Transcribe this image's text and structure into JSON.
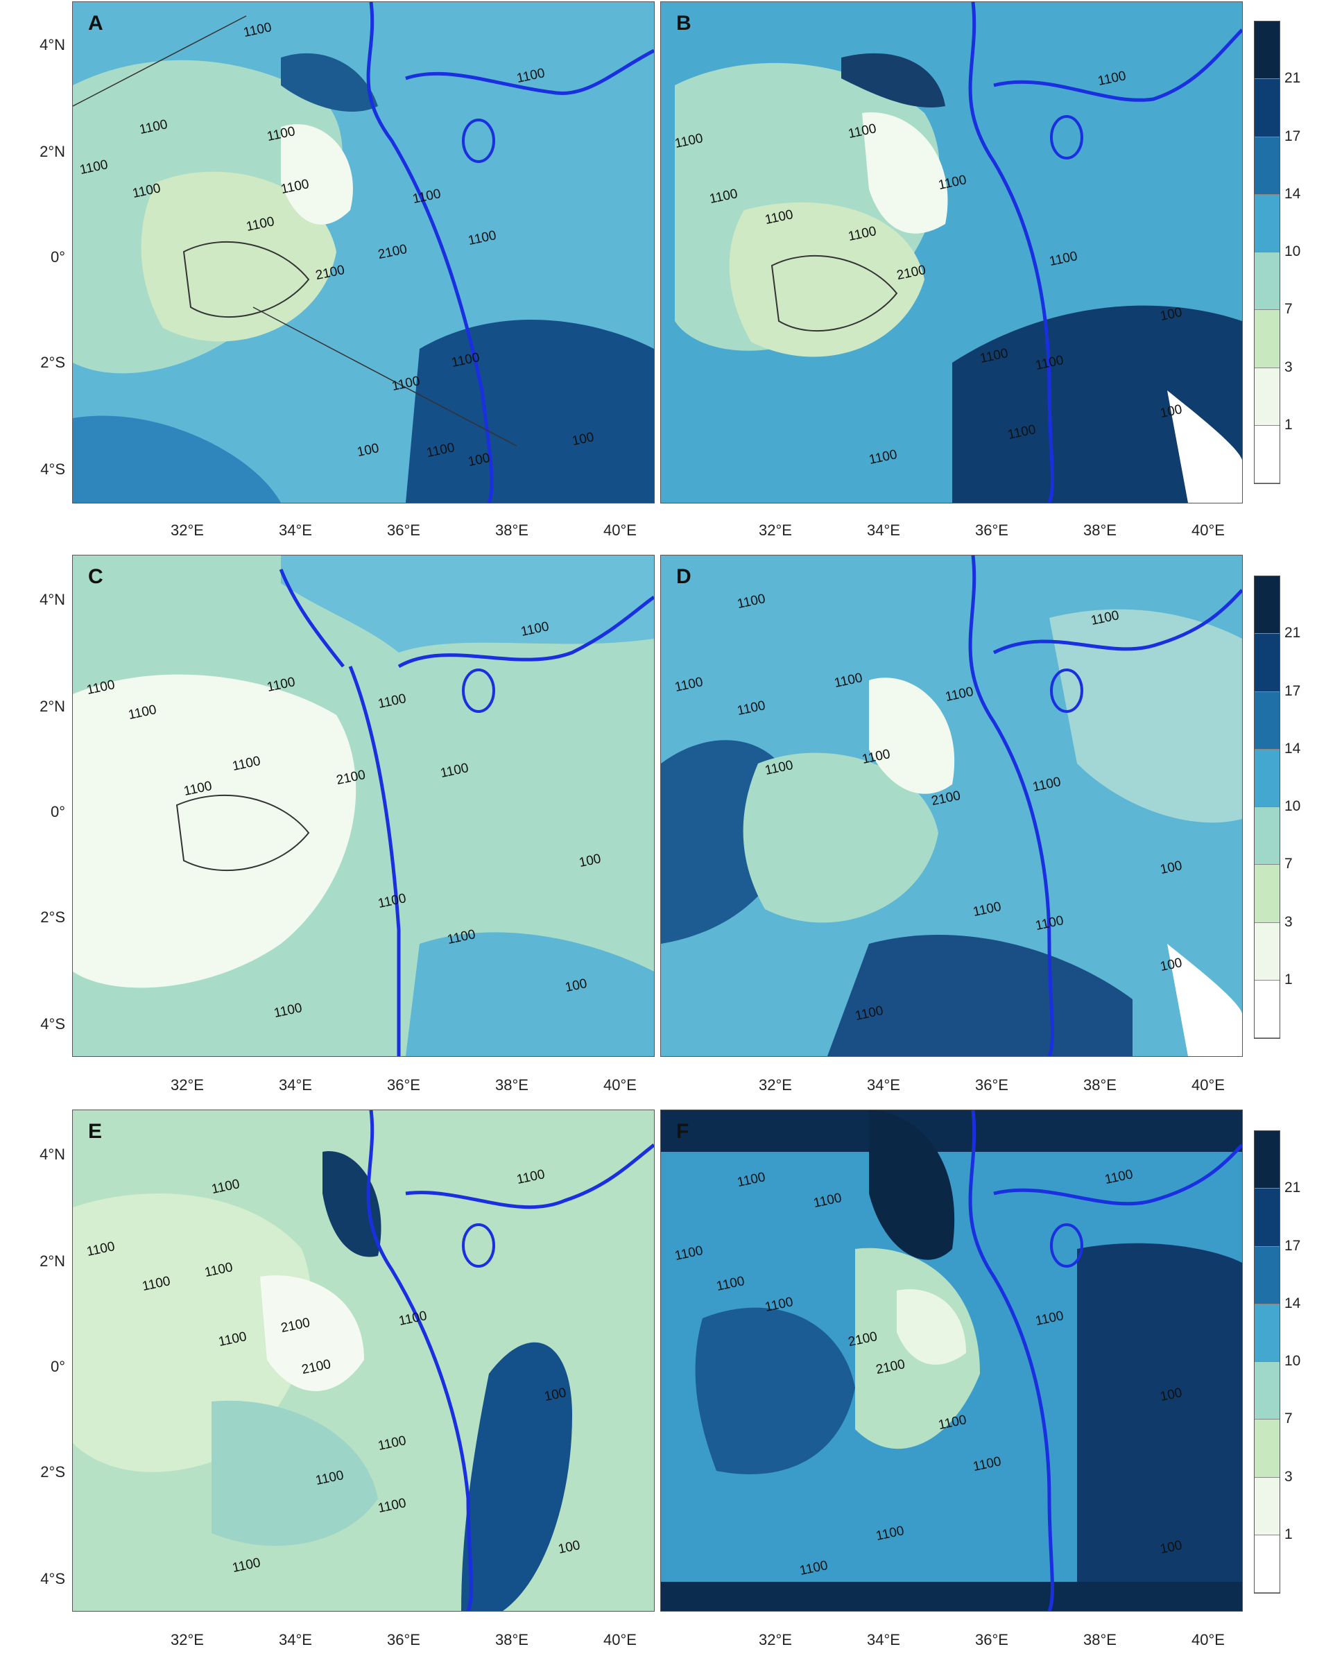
{
  "panels": [
    {
      "letter": "A",
      "contours": [
        "1100",
        "1100",
        "1100",
        "1100",
        "1100",
        "1100",
        "1100",
        "1100",
        "1100",
        "2100",
        "2100",
        "1100",
        "1100",
        "1100",
        "100",
        "1100",
        "100",
        "100"
      ]
    },
    {
      "letter": "B",
      "contours": [
        "1100",
        "1100",
        "1100",
        "1100",
        "1100",
        "1100",
        "1100",
        "2100",
        "1100",
        "100",
        "1100",
        "1100",
        "1100",
        "100",
        "1100"
      ]
    },
    {
      "letter": "C",
      "contours": [
        "1100",
        "1100",
        "1100",
        "1100",
        "1100",
        "1100",
        "2100",
        "1100",
        "1100",
        "100",
        "1100",
        "1100",
        "1100",
        "100"
      ]
    },
    {
      "letter": "D",
      "contours": [
        "1100",
        "1100",
        "1100",
        "1100",
        "1100",
        "1100",
        "1100",
        "1100",
        "2100",
        "1100",
        "100",
        "1100",
        "1100",
        "1100",
        "100"
      ]
    },
    {
      "letter": "E",
      "contours": [
        "1100",
        "1100",
        "1100",
        "1100",
        "1100",
        "1100",
        "2100",
        "2100",
        "1100",
        "1100",
        "100",
        "1100",
        "1100",
        "1100",
        "100"
      ]
    },
    {
      "letter": "F",
      "contours": [
        "1100",
        "1100",
        "1100",
        "1100",
        "1100",
        "1100",
        "2100",
        "2100",
        "1100",
        "1100",
        "100",
        "1100",
        "1100",
        "1100",
        "100"
      ]
    }
  ],
  "lat_ticks": [
    "4°N",
    "2°N",
    "0°",
    "2°S",
    "4°S"
  ],
  "lon_ticks": [
    "32°E",
    "34°E",
    "36°E",
    "38°E",
    "40°E"
  ],
  "colorbar": {
    "labels": [
      "21",
      "17",
      "14",
      "10",
      "7",
      "3",
      "1"
    ],
    "colors": [
      "#0a2845",
      "#0d3f75",
      "#1f70a6",
      "#43a7d0",
      "#9fd7c9",
      "#c8e8c0",
      "#eef7ea",
      "#ffffff"
    ]
  }
}
